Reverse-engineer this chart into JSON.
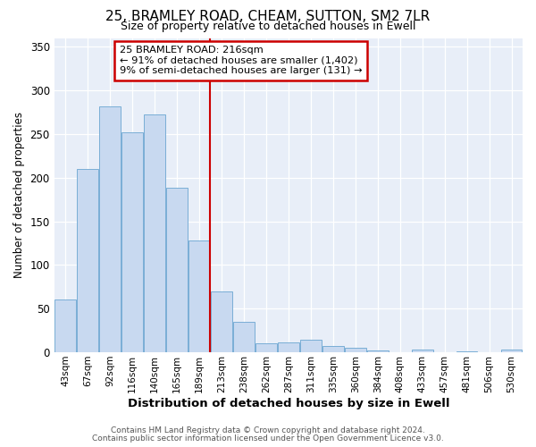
{
  "title": "25, BRAMLEY ROAD, CHEAM, SUTTON, SM2 7LR",
  "subtitle": "Size of property relative to detached houses in Ewell",
  "xlabel": "Distribution of detached houses by size in Ewell",
  "ylabel": "Number of detached properties",
  "bar_labels": [
    "43sqm",
    "67sqm",
    "92sqm",
    "116sqm",
    "140sqm",
    "165sqm",
    "189sqm",
    "213sqm",
    "238sqm",
    "262sqm",
    "287sqm",
    "311sqm",
    "335sqm",
    "360sqm",
    "384sqm",
    "408sqm",
    "433sqm",
    "457sqm",
    "481sqm",
    "506sqm",
    "530sqm"
  ],
  "bar_values": [
    60,
    210,
    282,
    252,
    272,
    188,
    128,
    70,
    35,
    10,
    11,
    14,
    7,
    5,
    2,
    0,
    3,
    0,
    1,
    0,
    3
  ],
  "bar_color": "#c8d9f0",
  "bar_edge_color": "#7aaed6",
  "vline_color": "#cc0000",
  "ylim": [
    0,
    360
  ],
  "yticks": [
    0,
    50,
    100,
    150,
    200,
    250,
    300,
    350
  ],
  "annotation_title": "25 BRAMLEY ROAD: 216sqm",
  "annotation_line1": "← 91% of detached houses are smaller (1,402)",
  "annotation_line2": "9% of semi-detached houses are larger (131) →",
  "footer1": "Contains HM Land Registry data © Crown copyright and database right 2024.",
  "footer2": "Contains public sector information licensed under the Open Government Licence v3.0.",
  "fig_bg_color": "#ffffff",
  "plot_bg_color": "#e8eef8"
}
